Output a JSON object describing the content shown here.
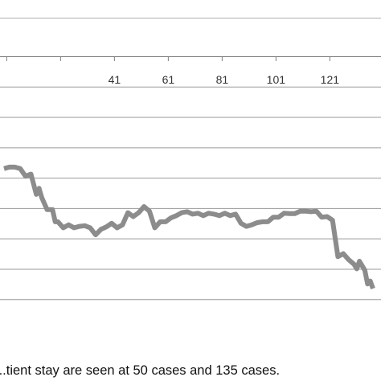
{
  "chart_data": {
    "type": "line",
    "x_ticks": [
      41,
      61,
      81,
      101,
      121
    ],
    "xlim": [
      -1.5,
      140
    ],
    "ylim": [
      0,
      9
    ],
    "grid": true,
    "y_gridlines": [
      1,
      2,
      3,
      4,
      5,
      6,
      7,
      8
    ],
    "line_color": "#8c8c8c",
    "series": [
      {
        "x": [
          0,
          2,
          4,
          6,
          8,
          10,
          12,
          13,
          14,
          16,
          18,
          19,
          20,
          22,
          24,
          26,
          28,
          30,
          32,
          34,
          36,
          38,
          40,
          42,
          44,
          46,
          48,
          50,
          52,
          54,
          56,
          58,
          60,
          62,
          64,
          66,
          68,
          70,
          72,
          74,
          76,
          78,
          80,
          82,
          84,
          86,
          88,
          90,
          92,
          94,
          96,
          98,
          100,
          102,
          104,
          106,
          108,
          110,
          112,
          114,
          116,
          118,
          120,
          122,
          124,
          126,
          128,
          130,
          131,
          132,
          134,
          135,
          136,
          137
        ],
        "y": [
          5.3,
          5.35,
          5.35,
          5.3,
          5.05,
          5.12,
          4.45,
          4.65,
          4.35,
          3.95,
          3.95,
          3.55,
          3.55,
          3.35,
          3.45,
          3.35,
          3.4,
          3.42,
          3.35,
          3.12,
          3.3,
          3.38,
          3.5,
          3.35,
          3.45,
          3.85,
          3.72,
          3.85,
          4.05,
          3.9,
          3.35,
          3.55,
          3.55,
          3.68,
          3.75,
          3.85,
          3.88,
          3.8,
          3.83,
          3.75,
          3.83,
          3.8,
          3.75,
          3.83,
          3.75,
          3.8,
          3.5,
          3.4,
          3.45,
          3.52,
          3.55,
          3.55,
          3.7,
          3.7,
          3.83,
          3.82,
          3.82,
          3.9,
          3.9,
          3.88,
          3.9,
          3.7,
          3.72,
          3.6,
          2.4,
          2.5,
          2.3,
          2.15,
          2.0,
          2.25,
          1.95,
          1.5,
          1.6,
          1.35
        ]
      }
    ]
  },
  "caption": {
    "text": "...tient stay are seen at 50 cases and 135 cases."
  }
}
